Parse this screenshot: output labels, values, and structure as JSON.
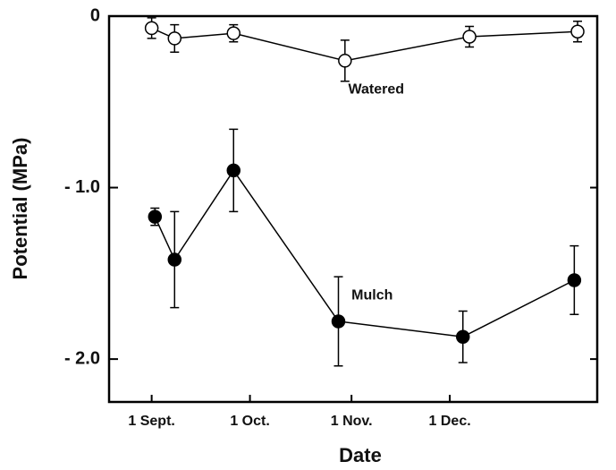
{
  "chart_data": {
    "type": "line",
    "x_label": "Date",
    "y_label": "Potential (MPa)",
    "xlim": [
      -13,
      136
    ],
    "xticks": [
      {
        "value": 0,
        "label": "1 Sept."
      },
      {
        "value": 30,
        "label": "1 Oct."
      },
      {
        "value": 61,
        "label": "1 Nov."
      },
      {
        "value": 91,
        "label": "1 Dec."
      }
    ],
    "ylim": [
      -2.25,
      0
    ],
    "yticks": [
      0,
      {
        "value": -1,
        "label": "- 1.0"
      },
      {
        "value": -2,
        "label": "- 2.0"
      }
    ],
    "series": [
      {
        "name": "Watered",
        "marker": "open",
        "color": "#000000",
        "x": [
          0,
          7,
          25,
          59,
          97,
          130
        ],
        "values": [
          -0.07,
          -0.13,
          -0.1,
          -0.26,
          -0.12,
          -0.09
        ],
        "errors": [
          0.06,
          0.08,
          0.05,
          0.12,
          0.06,
          0.06
        ]
      },
      {
        "name": "Mulch",
        "marker": "filled",
        "color": "#000000",
        "x": [
          1,
          7,
          25,
          57,
          95,
          129
        ],
        "values": [
          -1.17,
          -1.42,
          -0.9,
          -1.78,
          -1.87,
          -1.54
        ],
        "errors": [
          0.05,
          0.28,
          0.24,
          0.26,
          0.15,
          0.2
        ]
      }
    ],
    "annotations": [
      {
        "text": "Watered",
        "x": 60,
        "y": -0.43
      },
      {
        "text": "Mulch",
        "x": 61,
        "y": -1.63
      }
    ]
  }
}
